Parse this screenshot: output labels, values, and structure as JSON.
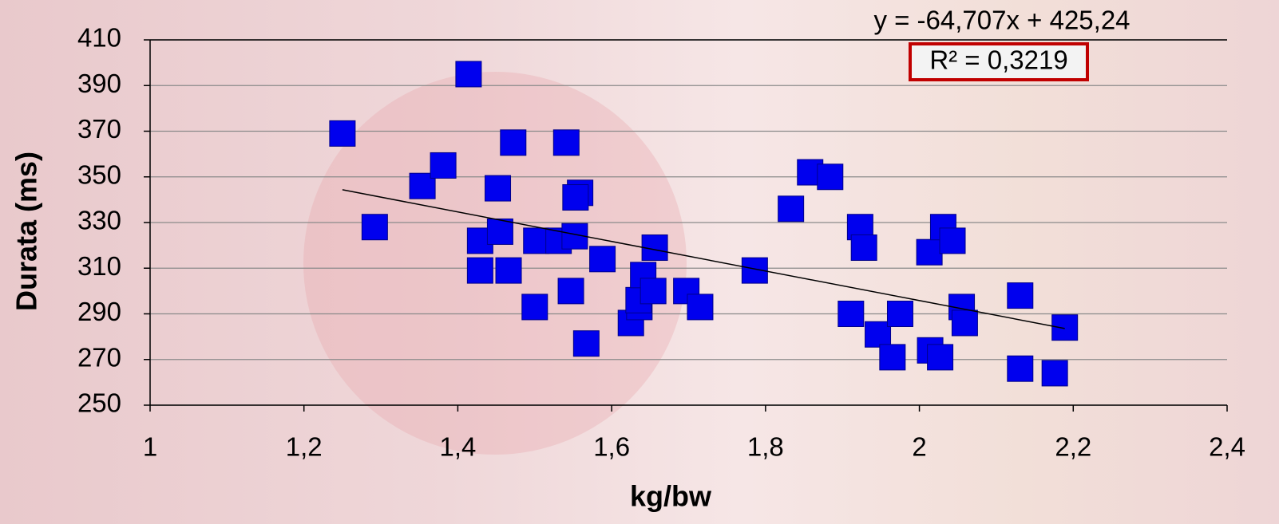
{
  "chart_data": {
    "type": "scatter",
    "x_label": "kg/bw",
    "y_label": "Durata (ms)",
    "trendline": {
      "equation": "y = -64,707x + 425,24",
      "r2_label": "R² = 0,3219",
      "slope": -64.707,
      "intercept": 425.24,
      "color": "#000000"
    },
    "series": [
      {
        "color": "#0000ee",
        "x": [
          1.25,
          1.292,
          1.354,
          1.381,
          1.414,
          1.429,
          1.429,
          1.452,
          1.455,
          1.466,
          1.472,
          1.5,
          1.502,
          1.531,
          1.541,
          1.552,
          1.547,
          1.559,
          1.553,
          1.567,
          1.588,
          1.625,
          1.636,
          1.635,
          1.641,
          1.654,
          1.656,
          1.697,
          1.715,
          1.786,
          1.833,
          1.858,
          1.884,
          1.911,
          1.923,
          1.928,
          1.946,
          1.965,
          1.975,
          2.013,
          2.014,
          2.027,
          2.031,
          2.043,
          2.055,
          2.059,
          2.131,
          2.131,
          2.176,
          2.189
        ],
        "values": [
          369,
          328,
          346,
          355,
          395,
          322,
          309,
          345,
          326,
          309,
          365,
          293,
          322,
          322,
          365,
          324,
          300,
          343,
          341,
          277,
          314,
          286,
          293,
          296,
          307,
          300,
          319,
          300,
          293,
          309,
          336,
          352,
          350,
          290,
          328,
          319,
          281,
          271,
          290,
          317,
          274,
          271,
          328,
          322,
          293,
          286,
          298,
          266,
          264,
          284
        ]
      }
    ],
    "xlim": [
      1,
      2.4
    ],
    "ylim": [
      250,
      410
    ],
    "xticks": [
      1,
      {
        "value": 1.2,
        "label": "1,2"
      },
      {
        "value": 1.4,
        "label": "1,4"
      },
      {
        "value": 1.6,
        "label": "1,6"
      },
      {
        "value": 1.8,
        "label": "1,8"
      },
      2,
      {
        "value": 2.2,
        "label": "2,2"
      },
      {
        "value": 2.4,
        "label": "2,4"
      }
    ],
    "yticks": [
      250,
      270,
      290,
      310,
      330,
      350,
      370,
      390,
      410
    ],
    "grid": true
  }
}
